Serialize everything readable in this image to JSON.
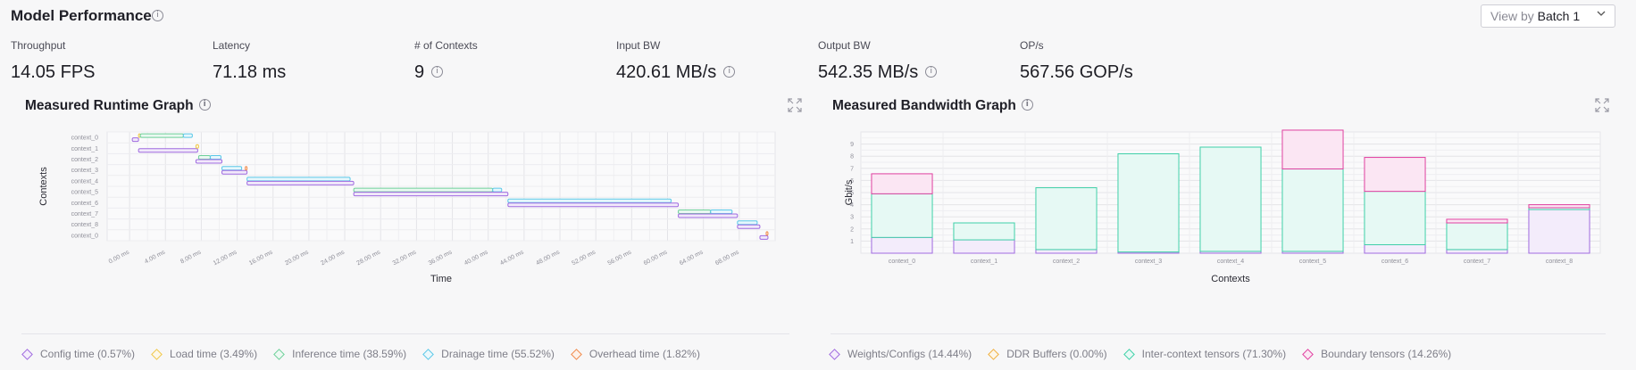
{
  "header": {
    "title": "Model Performance",
    "view_by_label": "View by",
    "view_by_value": "Batch 1"
  },
  "metrics": [
    {
      "label": "Throughput",
      "value": "14.05 FPS",
      "info": false
    },
    {
      "label": "Latency",
      "value": "71.18 ms",
      "info": false
    },
    {
      "label": "# of Contexts",
      "value": "9",
      "info": true
    },
    {
      "label": "Input BW",
      "value": "420.61 MB/s",
      "info": true
    },
    {
      "label": "Output BW",
      "value": "542.35 MB/s",
      "info": true
    },
    {
      "label": "OP/s",
      "value": "567.56 GOP/s",
      "info": false
    }
  ],
  "runtime_panel": {
    "title": "Measured Runtime Graph",
    "legend": [
      {
        "label": "Config time (0.57%)",
        "color": "#a06be0"
      },
      {
        "label": "Load time (3.49%)",
        "color": "#f0c84a"
      },
      {
        "label": "Inference time (38.59%)",
        "color": "#6ed09a"
      },
      {
        "label": "Drainage time (55.52%)",
        "color": "#5bc8e8"
      },
      {
        "label": "Overhead time (1.82%)",
        "color": "#f08a4b"
      }
    ]
  },
  "bandwidth_panel": {
    "title": "Measured Bandwidth Graph",
    "legend": [
      {
        "label": "Weights/Configs (14.44%)",
        "color": "#a06be0"
      },
      {
        "label": "DDR Buffers (0.00%)",
        "color": "#f0b040"
      },
      {
        "label": "Inter-context tensors (71.30%)",
        "color": "#3fd0a8"
      },
      {
        "label": "Boundary tensors (14.26%)",
        "color": "#e040a0"
      }
    ]
  },
  "chart_data": [
    {
      "type": "gantt",
      "xlabel": "Time",
      "ylabel": "Contexts",
      "x_ticks": [
        "0.00 ms",
        "4.00 ms",
        "8.00 ms",
        "12.00 ms",
        "16.00 ms",
        "20.00 ms",
        "24.00 ms",
        "28.00 ms",
        "32.00 ms",
        "36.00 ms",
        "40.00 ms",
        "44.00 ms",
        "48.00 ms",
        "52.00 ms",
        "56.00 ms",
        "60.00 ms",
        "64.00 ms",
        "68.00 ms"
      ],
      "x_range_ms": [
        -2.5,
        72
      ],
      "categories": [
        "context_0",
        "context_1",
        "context_2",
        "context_3",
        "context_4",
        "context_5",
        "context_6",
        "context_7",
        "context_8",
        "context_0"
      ],
      "series_colors": {
        "config": "#a06be0",
        "load": "#f0c84a",
        "inference": "#6ed09a",
        "drainage": "#5bc8e8",
        "overhead": "#f08a4b"
      },
      "segments": [
        {
          "row": 0,
          "kind": "config",
          "start": 0.3,
          "end": 1.0
        },
        {
          "row": 0,
          "kind": "load",
          "start": 1.0,
          "end": 1.2
        },
        {
          "row": 0,
          "kind": "inference",
          "start": 1.2,
          "end": 6.0
        },
        {
          "row": 0,
          "kind": "drainage",
          "start": 6.0,
          "end": 7.0
        },
        {
          "row": 1,
          "kind": "config",
          "start": 1.0,
          "end": 7.6
        },
        {
          "row": 1,
          "kind": "load",
          "start": 7.4,
          "end": 7.7
        },
        {
          "row": 2,
          "kind": "inference",
          "start": 7.7,
          "end": 9.0
        },
        {
          "row": 2,
          "kind": "drainage",
          "start": 9.0,
          "end": 10.2
        },
        {
          "row": 2,
          "kind": "config",
          "start": 7.4,
          "end": 10.3
        },
        {
          "row": 3,
          "kind": "drainage",
          "start": 10.3,
          "end": 12.5
        },
        {
          "row": 3,
          "kind": "config",
          "start": 10.3,
          "end": 13.1
        },
        {
          "row": 3,
          "kind": "overhead",
          "start": 12.9,
          "end": 13.1
        },
        {
          "row": 4,
          "kind": "drainage",
          "start": 13.1,
          "end": 24.6
        },
        {
          "row": 4,
          "kind": "config",
          "start": 13.1,
          "end": 25.0
        },
        {
          "row": 5,
          "kind": "inference",
          "start": 25.0,
          "end": 40.5
        },
        {
          "row": 5,
          "kind": "drainage",
          "start": 40.5,
          "end": 41.5
        },
        {
          "row": 5,
          "kind": "config",
          "start": 25.0,
          "end": 42.2
        },
        {
          "row": 6,
          "kind": "drainage",
          "start": 42.2,
          "end": 60.4
        },
        {
          "row": 6,
          "kind": "config",
          "start": 42.2,
          "end": 61.2
        },
        {
          "row": 7,
          "kind": "inference",
          "start": 61.2,
          "end": 64.8
        },
        {
          "row": 7,
          "kind": "drainage",
          "start": 64.8,
          "end": 67.2
        },
        {
          "row": 7,
          "kind": "config",
          "start": 61.2,
          "end": 67.8
        },
        {
          "row": 8,
          "kind": "drainage",
          "start": 67.8,
          "end": 70.0
        },
        {
          "row": 8,
          "kind": "config",
          "start": 67.8,
          "end": 70.3
        },
        {
          "row": 9,
          "kind": "config",
          "start": 70.3,
          "end": 71.2
        },
        {
          "row": 9,
          "kind": "overhead",
          "start": 71.0,
          "end": 71.2
        }
      ]
    },
    {
      "type": "bar",
      "stacked": true,
      "xlabel": "Contexts",
      "ylabel": "Gbit/s",
      "ylim": [
        0,
        10
      ],
      "y_ticks": [
        1,
        2,
        3,
        4,
        5,
        6,
        7,
        8,
        9
      ],
      "grid": true,
      "categories": [
        "context_0",
        "context_1",
        "context_2",
        "context_3",
        "context_4",
        "context_5",
        "context_6",
        "context_7",
        "context_8"
      ],
      "series": [
        {
          "name": "Weights/Configs",
          "color": "#a06be0",
          "values": [
            1.3,
            1.1,
            0.3,
            0.1,
            0.15,
            0.15,
            0.7,
            0.3,
            3.6
          ]
        },
        {
          "name": "DDR Buffers",
          "color": "#f0b040",
          "values": [
            0,
            0,
            0,
            0,
            0,
            0,
            0,
            0,
            0
          ]
        },
        {
          "name": "Inter-context tensors",
          "color": "#3fd0a8",
          "values": [
            3.6,
            1.4,
            5.1,
            8.1,
            8.6,
            6.8,
            4.4,
            2.2,
            0.15
          ]
        },
        {
          "name": "Boundary tensors",
          "color": "#e040a0",
          "values": [
            1.65,
            0,
            0,
            0,
            0,
            3.2,
            2.8,
            0.3,
            0.25
          ]
        }
      ]
    }
  ]
}
